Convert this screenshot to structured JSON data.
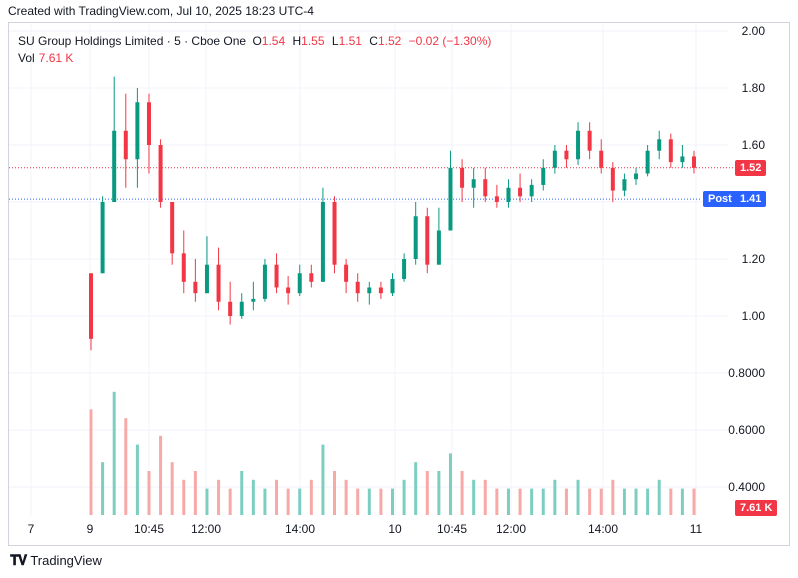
{
  "header": {
    "created_text": "Created with TradingView.com, Jul 10, 2025 18:23 UTC-4"
  },
  "legend": {
    "symbol": "SU Group Holdings Limited · 5 · Cboe One",
    "o_label": "O",
    "o_value": "1.54",
    "h_label": "H",
    "h_value": "1.55",
    "l_label": "L",
    "l_value": "1.51",
    "c_label": "C",
    "c_value": "1.52",
    "change": "−0.02 (−1.30%)",
    "vol_label": "Vol",
    "vol_value": "7.61 K"
  },
  "tags": {
    "last_price": "1.52",
    "post_label": "Post",
    "post_price": "1.41",
    "vol_tag": "7.61 K"
  },
  "footer": {
    "brand": "TradingView"
  },
  "colors": {
    "up": "#089981",
    "down": "#f23645",
    "post": "#2962ff",
    "grid": "#f0f3fa"
  },
  "chart_data": {
    "type": "candlestick",
    "symbol": "SU Group Holdings Limited",
    "interval": "5",
    "exchange": "Cboe One",
    "y_ticks": [
      "2.00",
      "1.80",
      "1.60",
      "1.40",
      "1.20",
      "1.00",
      "0.8000",
      "0.6000",
      "0.4000"
    ],
    "ylim": [
      0.25,
      2.0
    ],
    "x_ticks": [
      "7",
      "9",
      "10:45",
      "12:00",
      "14:00",
      "10",
      "10:45",
      "12:00",
      "14:00",
      "11"
    ],
    "last_price": 1.52,
    "post_price": 1.41,
    "candles_approx": [
      [
        1.15,
        1.15,
        0.88,
        0.92
      ],
      [
        1.15,
        1.42,
        1.15,
        1.4
      ],
      [
        1.4,
        1.84,
        1.4,
        1.65
      ],
      [
        1.65,
        1.78,
        1.45,
        1.55
      ],
      [
        1.55,
        1.8,
        1.45,
        1.75
      ],
      [
        1.75,
        1.78,
        1.5,
        1.6
      ],
      [
        1.6,
        1.62,
        1.38,
        1.4
      ],
      [
        1.4,
        1.4,
        1.18,
        1.22
      ],
      [
        1.22,
        1.3,
        1.08,
        1.12
      ],
      [
        1.12,
        1.2,
        1.05,
        1.08
      ],
      [
        1.08,
        1.28,
        1.08,
        1.18
      ],
      [
        1.18,
        1.24,
        1.02,
        1.05
      ],
      [
        1.05,
        1.12,
        0.97,
        1.0
      ],
      [
        1.0,
        1.08,
        0.99,
        1.05
      ],
      [
        1.05,
        1.12,
        1.02,
        1.06
      ],
      [
        1.06,
        1.2,
        1.05,
        1.18
      ],
      [
        1.18,
        1.22,
        1.08,
        1.1
      ],
      [
        1.1,
        1.14,
        1.04,
        1.08
      ],
      [
        1.08,
        1.18,
        1.07,
        1.15
      ],
      [
        1.15,
        1.18,
        1.1,
        1.12
      ],
      [
        1.12,
        1.45,
        1.12,
        1.4
      ],
      [
        1.4,
        1.42,
        1.15,
        1.18
      ],
      [
        1.18,
        1.2,
        1.08,
        1.12
      ],
      [
        1.12,
        1.15,
        1.05,
        1.08
      ],
      [
        1.08,
        1.12,
        1.04,
        1.1
      ],
      [
        1.1,
        1.12,
        1.06,
        1.08
      ],
      [
        1.08,
        1.15,
        1.07,
        1.13
      ],
      [
        1.13,
        1.22,
        1.12,
        1.2
      ],
      [
        1.2,
        1.4,
        1.18,
        1.35
      ],
      [
        1.35,
        1.38,
        1.15,
        1.18
      ],
      [
        1.18,
        1.38,
        1.18,
        1.3
      ],
      [
        1.3,
        1.58,
        1.3,
        1.52
      ],
      [
        1.52,
        1.55,
        1.4,
        1.45
      ],
      [
        1.45,
        1.52,
        1.38,
        1.48
      ],
      [
        1.48,
        1.52,
        1.4,
        1.42
      ],
      [
        1.42,
        1.46,
        1.38,
        1.4
      ],
      [
        1.4,
        1.48,
        1.38,
        1.45
      ],
      [
        1.45,
        1.5,
        1.4,
        1.42
      ],
      [
        1.42,
        1.48,
        1.4,
        1.46
      ],
      [
        1.46,
        1.55,
        1.44,
        1.52
      ],
      [
        1.52,
        1.6,
        1.5,
        1.58
      ],
      [
        1.58,
        1.6,
        1.52,
        1.55
      ],
      [
        1.55,
        1.68,
        1.53,
        1.65
      ],
      [
        1.65,
        1.68,
        1.55,
        1.58
      ],
      [
        1.58,
        1.62,
        1.5,
        1.52
      ],
      [
        1.52,
        1.54,
        1.4,
        1.44
      ],
      [
        1.44,
        1.5,
        1.42,
        1.48
      ],
      [
        1.48,
        1.52,
        1.46,
        1.5
      ],
      [
        1.5,
        1.6,
        1.49,
        1.58
      ],
      [
        1.58,
        1.65,
        1.55,
        1.62
      ],
      [
        1.62,
        1.64,
        1.52,
        1.54
      ],
      [
        1.54,
        1.6,
        1.52,
        1.56
      ],
      [
        1.56,
        1.58,
        1.5,
        1.52
      ]
    ],
    "volume_approx": [
      0.12,
      0.06,
      0.14,
      0.11,
      0.08,
      0.05,
      0.09,
      0.06,
      0.04,
      0.05,
      0.03,
      0.04,
      0.03,
      0.05,
      0.04,
      0.03,
      0.04,
      0.03,
      0.03,
      0.04,
      0.08,
      0.05,
      0.04,
      0.03,
      0.03,
      0.03,
      0.03,
      0.04,
      0.06,
      0.05,
      0.05,
      0.07,
      0.05,
      0.04,
      0.04,
      0.03,
      0.03,
      0.03,
      0.03,
      0.03,
      0.04,
      0.03,
      0.04,
      0.03,
      0.03,
      0.04,
      0.03,
      0.03,
      0.03,
      0.04,
      0.03,
      0.03,
      0.03
    ]
  }
}
